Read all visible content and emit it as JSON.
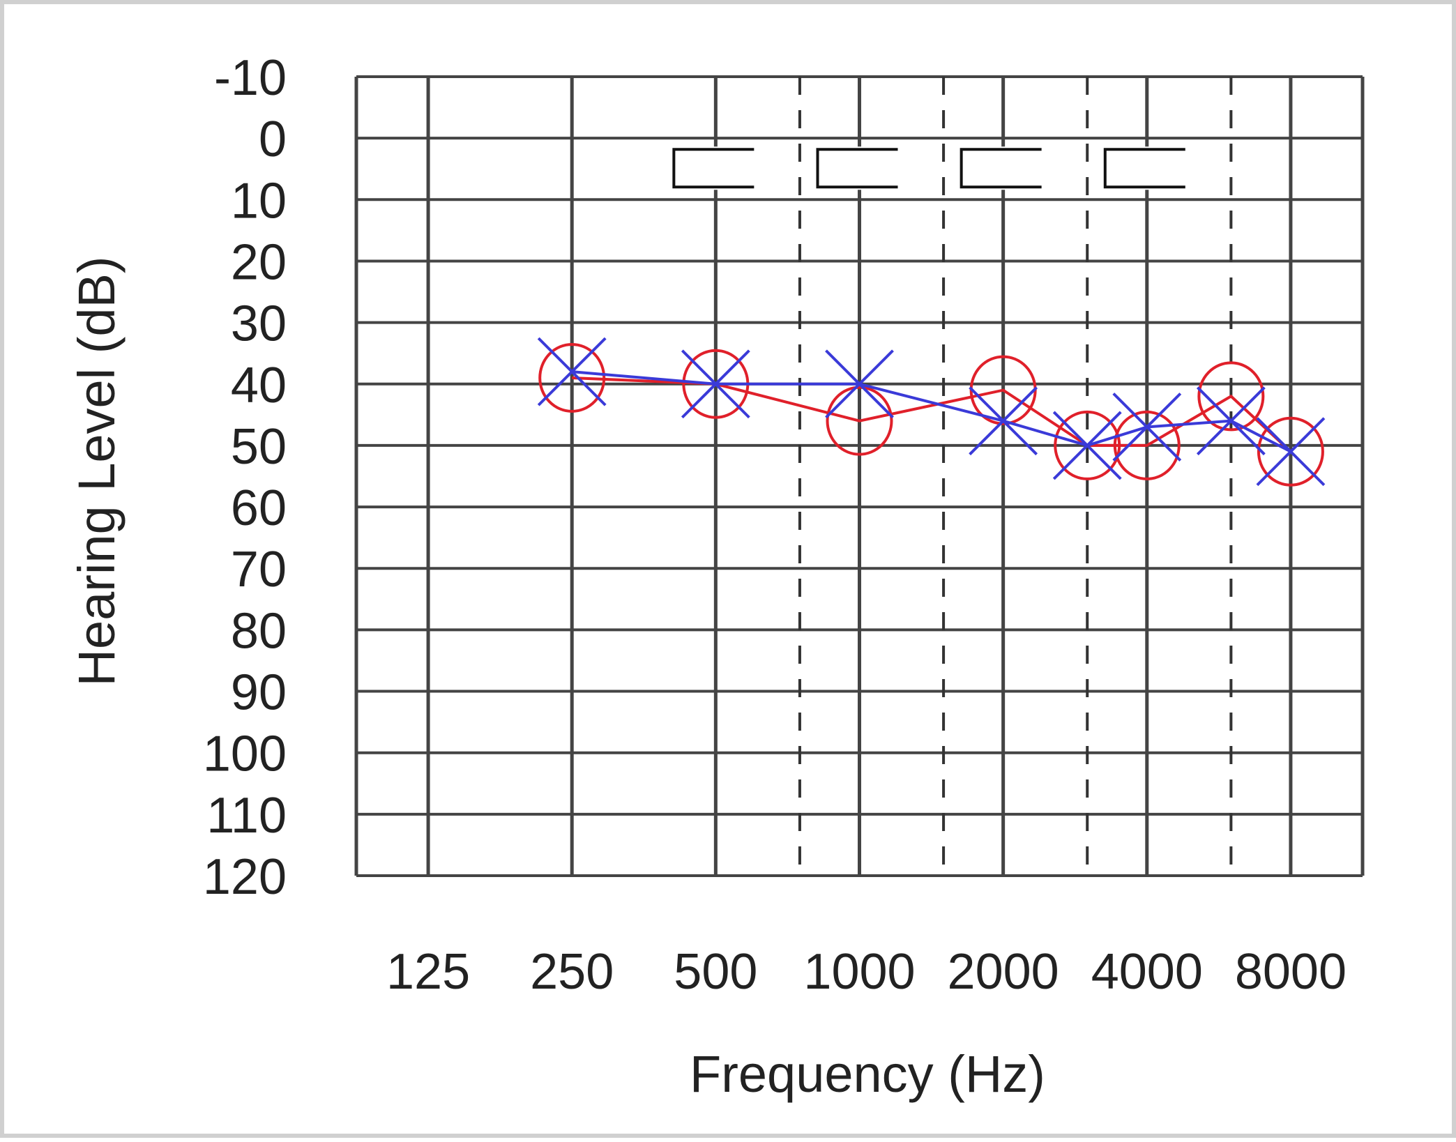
{
  "chart_data": {
    "type": "line",
    "title": "",
    "xlabel": "Frequency (Hz)",
    "ylabel": "Hearing Level (dB)",
    "x_categories": [
      "125",
      "250",
      "500",
      "1000",
      "2000",
      "4000",
      "8000"
    ],
    "y_ticks": [
      "-10",
      "0",
      "10",
      "20",
      "30",
      "40",
      "50",
      "60",
      "70",
      "80",
      "90",
      "100",
      "110",
      "120"
    ],
    "ylim": [
      -10,
      120
    ],
    "y_inverted": true,
    "x_scale": "octave (log2)",
    "grid": true,
    "interoctave_gridlines_dashed": [
      "750",
      "1500",
      "3000",
      "6000"
    ],
    "series": [
      {
        "marker": "circle",
        "color": "#e0202a",
        "points": [
          {
            "freq": 250,
            "db": 39
          },
          {
            "freq": 500,
            "db": 40
          },
          {
            "freq": 1000,
            "db": 46
          },
          {
            "freq": 2000,
            "db": 41
          },
          {
            "freq": 3000,
            "db": 50
          },
          {
            "freq": 4000,
            "db": 50
          },
          {
            "freq": 6000,
            "db": 42
          },
          {
            "freq": 8000,
            "db": 51
          }
        ]
      },
      {
        "marker": "x",
        "color": "#3a3ad8",
        "points": [
          {
            "freq": 250,
            "db": 38
          },
          {
            "freq": 500,
            "db": 40
          },
          {
            "freq": 1000,
            "db": 40
          },
          {
            "freq": 2000,
            "db": 46
          },
          {
            "freq": 3000,
            "db": 50
          },
          {
            "freq": 4000,
            "db": 47
          },
          {
            "freq": 6000,
            "db": 46
          },
          {
            "freq": 8000,
            "db": 51
          }
        ]
      }
    ],
    "bracket_markers": [
      {
        "freq": 500,
        "db": 5
      },
      {
        "freq": 1000,
        "db": 5
      },
      {
        "freq": 2000,
        "db": 5
      },
      {
        "freq": 4000,
        "db": 5
      }
    ],
    "colors": {
      "grid": "#444444",
      "red": "#e0202a",
      "blue": "#3a3ad8",
      "bracket": "#111111"
    }
  }
}
